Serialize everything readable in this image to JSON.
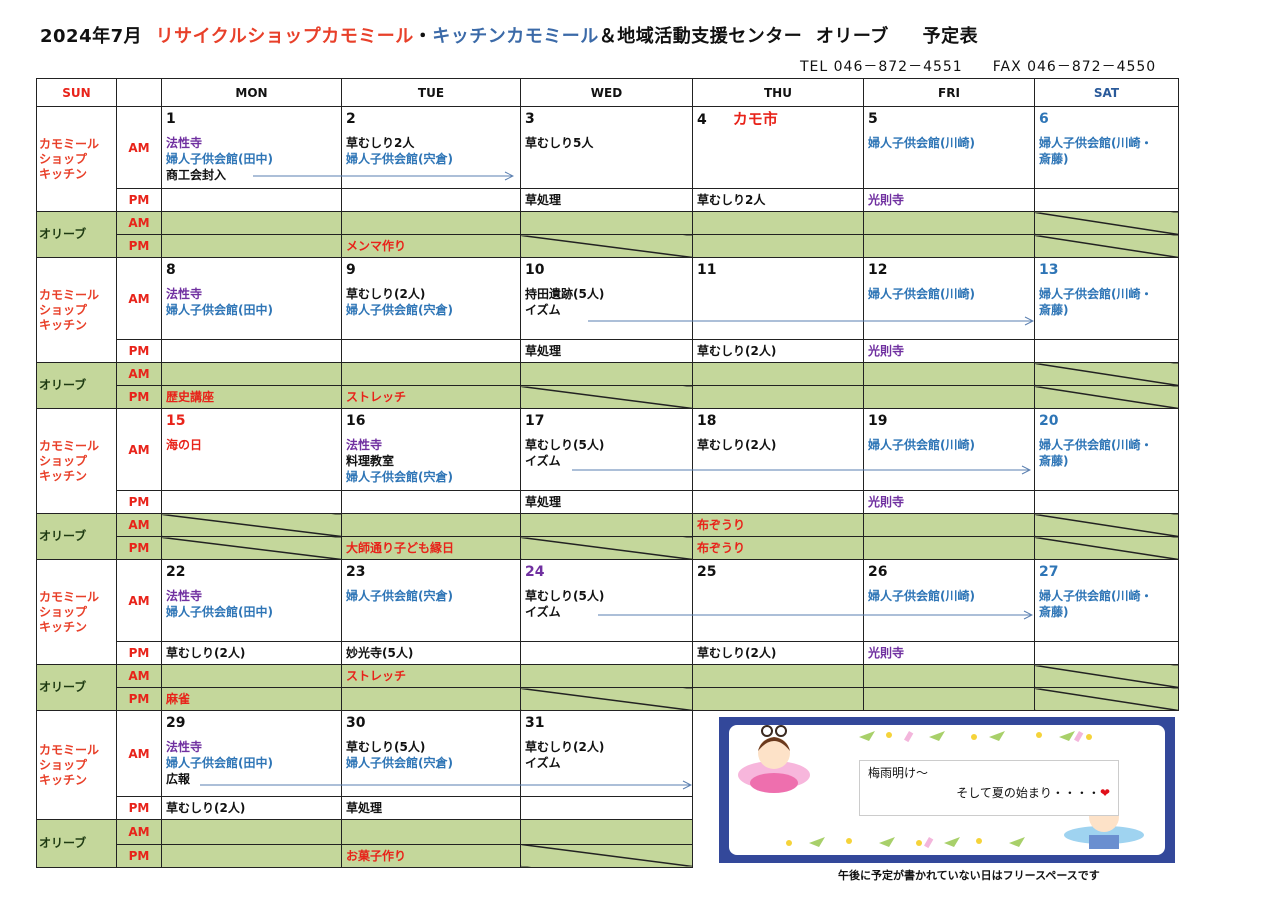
{
  "title": {
    "date": "2024年7月",
    "part1": "リサイクルショップカモミール",
    "sep": "・",
    "part2": "キッチンカモミール",
    "part3": "＆地域活動支援センター",
    "part4": "オリーブ",
    "part5": "予定表"
  },
  "contact": {
    "tel": "TEL  046－872－4551",
    "fax": "FAX  046－872－4550"
  },
  "colors": {
    "red": "#e8231a",
    "orange": "#e8402a",
    "blue": "#2e75b6",
    "purple": "#7030a0",
    "black": "#111111",
    "olive": "#c4d79b",
    "title_blue": "#3b6aa8",
    "dark_green": "#1e3a12"
  },
  "header": {
    "sun": "SUN",
    "days": [
      "MON",
      "TUE",
      "WED",
      "THU",
      "FRI",
      "SAT"
    ]
  },
  "groups": {
    "shop": [
      "カモミール",
      "ショップ",
      "キッチン"
    ],
    "olive": "オリーブ",
    "am": "AM",
    "pm": "PM"
  },
  "weeks": [
    {
      "days": [
        {
          "num": "1",
          "am": [
            [
              "法性寺",
              "purple"
            ],
            [
              "婦人子供会館(田中)",
              "blue"
            ],
            [
              "商工会封入",
              "black"
            ]
          ],
          "pm": [],
          "oam": "",
          "opm": ""
        },
        {
          "num": "2",
          "am": [
            [
              "草むしり2人",
              "black"
            ],
            [
              "婦人子供会館(宍倉)",
              "blue"
            ]
          ],
          "pm": [],
          "oam": "",
          "opm": "メンマ作り"
        },
        {
          "num": "3",
          "am": [
            [
              "草むしり5人",
              "black"
            ]
          ],
          "pm": [
            [
              "草処理",
              "black"
            ]
          ],
          "oam": "",
          "opm": "",
          "closed_pm": true
        },
        {
          "num": "4",
          "event": "カモ市",
          "am": [],
          "pm": [
            [
              "草むしり2人",
              "black"
            ]
          ],
          "oam": "",
          "opm": ""
        },
        {
          "num": "5",
          "am": [
            [
              "婦人子供会館(川崎)",
              "blue"
            ]
          ],
          "pm": [
            [
              "光則寺",
              "purple"
            ]
          ],
          "oam": "",
          "opm": ""
        },
        {
          "num": "6",
          "num_color": "blue",
          "am": [
            [
              "婦人子供会館(川崎・",
              "blue"
            ],
            [
              "斎藤)",
              "blue"
            ]
          ],
          "pm": [],
          "oam": "",
          "opm": "",
          "closed_am": true,
          "closed_pm": true
        }
      ]
    },
    {
      "days": [
        {
          "num": "8",
          "am": [
            [
              "法性寺",
              "purple"
            ],
            [
              "婦人子供会館(田中)",
              "blue"
            ]
          ],
          "pm": [],
          "oam": "",
          "opm": "歴史講座"
        },
        {
          "num": "9",
          "am": [
            [
              "草むしり(2人)",
              "black"
            ],
            [
              "婦人子供会館(宍倉)",
              "blue"
            ]
          ],
          "pm": [],
          "oam": "",
          "opm": "ストレッチ"
        },
        {
          "num": "10",
          "am": [
            [
              "持田遺跡(5人)",
              "black"
            ],
            [
              "イズム",
              "black"
            ]
          ],
          "pm": [
            [
              "草処理",
              "black"
            ]
          ],
          "oam": "",
          "opm": "",
          "closed_pm": true
        },
        {
          "num": "11",
          "am": [],
          "pm": [
            [
              "草むしり(2人)",
              "black"
            ]
          ],
          "oam": "",
          "opm": ""
        },
        {
          "num": "12",
          "am": [
            [
              "婦人子供会館(川崎)",
              "blue"
            ]
          ],
          "pm": [
            [
              "光則寺",
              "purple"
            ]
          ],
          "oam": "",
          "opm": ""
        },
        {
          "num": "13",
          "num_color": "blue",
          "am": [
            [
              "婦人子供会館(川崎・",
              "blue"
            ],
            [
              "斎藤)",
              "blue"
            ]
          ],
          "pm": [],
          "oam": "",
          "opm": "",
          "closed_am": true,
          "closed_pm": true
        }
      ]
    },
    {
      "days": [
        {
          "num": "15",
          "num_color": "red",
          "am": [
            [
              "海の日",
              "red"
            ]
          ],
          "pm": [],
          "oam": "",
          "opm": "",
          "closed_am": true,
          "closed_pm": true
        },
        {
          "num": "16",
          "am": [
            [
              "法性寺",
              "purple"
            ],
            [
              "料理教室",
              "black"
            ],
            [
              "婦人子供会館(宍倉)",
              "blue"
            ]
          ],
          "pm": [],
          "oam": "",
          "opm": "大師通り子ども縁日"
        },
        {
          "num": "17",
          "am": [
            [
              "草むしり(5人)",
              "black"
            ],
            [
              "イズム",
              "black"
            ]
          ],
          "pm": [
            [
              "草処理",
              "black"
            ]
          ],
          "oam": "",
          "opm": "",
          "closed_pm": true
        },
        {
          "num": "18",
          "am": [
            [
              "草むしり(2人)",
              "black"
            ]
          ],
          "pm": [],
          "oam": "布ぞうり",
          "opm": "布ぞうり"
        },
        {
          "num": "19",
          "am": [
            [
              "婦人子供会館(川崎)",
              "blue"
            ]
          ],
          "pm": [
            [
              "光則寺",
              "purple"
            ]
          ],
          "oam": "",
          "opm": ""
        },
        {
          "num": "20",
          "num_color": "blue",
          "am": [
            [
              "婦人子供会館(川崎・",
              "blue"
            ],
            [
              "斎藤)",
              "blue"
            ]
          ],
          "pm": [],
          "oam": "",
          "opm": "",
          "closed_am": true,
          "closed_pm": true
        }
      ]
    },
    {
      "days": [
        {
          "num": "22",
          "am": [
            [
              "法性寺",
              "purple"
            ],
            [
              "婦人子供会館(田中)",
              "blue"
            ]
          ],
          "pm": [
            [
              "草むしり(2人)",
              "black"
            ]
          ],
          "oam": "",
          "opm": "麻雀"
        },
        {
          "num": "23",
          "am": [
            [
              "婦人子供会館(宍倉)",
              "blue"
            ]
          ],
          "pm": [
            [
              "妙光寺(5人)",
              "black"
            ]
          ],
          "oam": "ストレッチ",
          "opm": ""
        },
        {
          "num": "24",
          "num_color": "purple",
          "am": [
            [
              "草むしり(5人)",
              "black"
            ],
            [
              "イズム",
              "black"
            ]
          ],
          "pm": [],
          "oam": "",
          "opm": "",
          "closed_pm": true
        },
        {
          "num": "25",
          "am": [],
          "pm": [
            [
              "草むしり(2人)",
              "black"
            ]
          ],
          "oam": "",
          "opm": ""
        },
        {
          "num": "26",
          "am": [
            [
              "婦人子供会館(川崎)",
              "blue"
            ]
          ],
          "pm": [
            [
              "光則寺",
              "purple"
            ]
          ],
          "oam": "",
          "opm": ""
        },
        {
          "num": "27",
          "num_color": "blue",
          "am": [
            [
              "婦人子供会館(川崎・",
              "blue"
            ],
            [
              "斎藤)",
              "blue"
            ]
          ],
          "pm": [],
          "oam": "",
          "opm": "",
          "closed_am": true,
          "closed_pm": true
        }
      ]
    },
    {
      "days": [
        {
          "num": "29",
          "am": [
            [
              "法性寺",
              "purple"
            ],
            [
              "婦人子供会館(田中)",
              "blue"
            ],
            [
              "広報",
              "black"
            ]
          ],
          "pm": [
            [
              "草むしり(2人)",
              "black"
            ]
          ],
          "oam": "",
          "opm": ""
        },
        {
          "num": "30",
          "am": [
            [
              "草むしり(5人)",
              "black"
            ],
            [
              "婦人子供会館(宍倉)",
              "blue"
            ]
          ],
          "pm": [
            [
              "草処理",
              "black"
            ]
          ],
          "oam": "",
          "opm": "お菓子作り"
        },
        {
          "num": "31",
          "am": [
            [
              "草むしり(2人)",
              "black"
            ],
            [
              "イズム",
              "black"
            ]
          ],
          "pm": [],
          "oam": "",
          "opm": "",
          "closed_pm": true
        }
      ]
    }
  ],
  "banner": {
    "line1": "梅雨明け～",
    "line2": "そして夏の始まり・・・・",
    "icon": "heart-icon"
  },
  "footer": "午後に予定が書かれていない日はフリースペースです"
}
